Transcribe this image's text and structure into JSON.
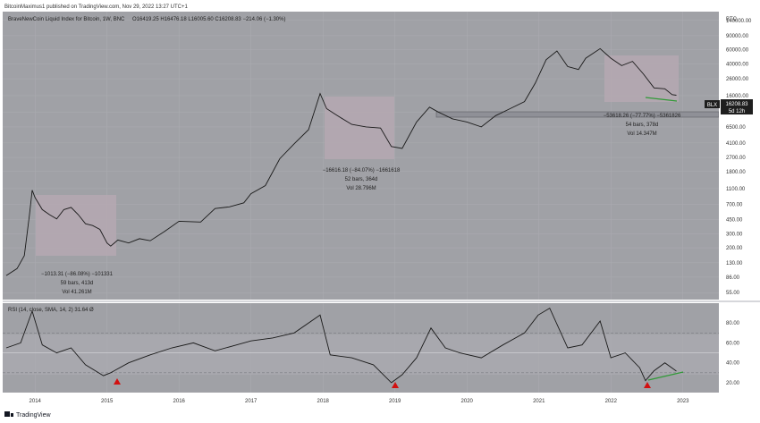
{
  "header": {
    "publisher": "BitcoinMaximus1 published on TradingView.com, Nov 29, 2022 13:27 UTC+1"
  },
  "legend": {
    "symbol": "BraveNewCoin Liquid Index for Bitcoin, 1W, BNC",
    "ohlc": "O16419.25  H16476.18  L16005.60  C16208.83  −214.06 (−1.30%)"
  },
  "price_axis": {
    "currency": "BTC",
    "labels": [
      "140000.00",
      "90000.00",
      "60000.00",
      "40000.00",
      "26000.00",
      "16000.00",
      "10000.00",
      "6500.00",
      "4100.00",
      "2700.00",
      "1800.00",
      "1100.00",
      "700.00",
      "450.00",
      "300.00",
      "200.00",
      "130.00",
      "86.00",
      "55.00"
    ],
    "last_label": "BLX",
    "last_price": "16208.83",
    "countdown": "5d 12h"
  },
  "rsi_panel": {
    "legend": "RSI (14, close, SMA, 14, 2)  31.64  Ø",
    "labels": [
      "80.00",
      "60.00",
      "40.00",
      "20.00"
    ]
  },
  "time_axis": {
    "labels": [
      "2014",
      "2015",
      "2016",
      "2017",
      "2018",
      "2019",
      "2020",
      "2021",
      "2022",
      "2023"
    ]
  },
  "annotations": [
    {
      "line1": "−1013.31 (−86.08%) −101331",
      "line2": "59 bars, 413d",
      "line3": "Vol 41.261M"
    },
    {
      "line1": "−16616.18 (−84.07%) −1661618",
      "line2": "52 bars, 364d",
      "line3": "Vol 28.796M"
    },
    {
      "line1": "−53618.26 (−77.77%) −5361826",
      "line2": "54 bars, 378d",
      "line3": "Vol 14.347M"
    }
  ],
  "footer": {
    "brand": "TradingView"
  },
  "colors": {
    "panel_bg": "#a0a1a6",
    "grid": "#aeafb4",
    "price_line": "#1a1a1a",
    "box_fill": "#b5a8b2",
    "support_fill": "#8f9097",
    "trend_green": "#2f9a36",
    "marker_red": "#d21010",
    "label_bg": "#1e1e1e"
  },
  "chart_data": [
    {
      "type": "line",
      "title": "BraveNewCoin Liquid Index for Bitcoin, 1W, BNC",
      "scale": "log",
      "ylabel": "BTC",
      "ylim": [
        45,
        180000
      ],
      "xlim": [
        2013.55,
        2023.5
      ],
      "x": [
        2013.6,
        2013.75,
        2013.85,
        2013.92,
        2013.96,
        2014.0,
        2014.1,
        2014.2,
        2014.3,
        2014.4,
        2014.5,
        2014.6,
        2014.7,
        2014.8,
        2014.9,
        2015.0,
        2015.05,
        2015.15,
        2015.3,
        2015.45,
        2015.6,
        2015.8,
        2016.0,
        2016.3,
        2016.5,
        2016.7,
        2016.9,
        2017.0,
        2017.2,
        2017.4,
        2017.6,
        2017.8,
        2017.96,
        2018.05,
        2018.2,
        2018.4,
        2018.6,
        2018.8,
        2018.95,
        2019.1,
        2019.3,
        2019.48,
        2019.6,
        2019.8,
        2020.0,
        2020.2,
        2020.4,
        2020.6,
        2020.8,
        2020.95,
        2021.1,
        2021.25,
        2021.4,
        2021.55,
        2021.65,
        2021.85,
        2022.0,
        2022.15,
        2022.3,
        2022.45,
        2022.6,
        2022.75,
        2022.85,
        2022.91
      ],
      "values": [
        90,
        110,
        160,
        500,
        1050,
        850,
        600,
        520,
        460,
        600,
        640,
        520,
        400,
        380,
        340,
        230,
        210,
        250,
        230,
        260,
        245,
        320,
        430,
        420,
        620,
        650,
        730,
        950,
        1200,
        2600,
        4000,
        6000,
        17000,
        11000,
        9000,
        7000,
        6500,
        6300,
        3700,
        3500,
        7500,
        11500,
        10000,
        8200,
        7500,
        6500,
        9000,
        11000,
        13500,
        23000,
        45000,
        58000,
        37000,
        34000,
        47000,
        62000,
        47000,
        38000,
        43000,
        30000,
        20000,
        19500,
        16500,
        16209
      ]
    },
    {
      "type": "line",
      "title": "RSI (14, close, SMA, 14, 2)",
      "ylim": [
        10,
        100
      ],
      "x": [
        2013.6,
        2013.8,
        2013.96,
        2014.1,
        2014.3,
        2014.5,
        2014.7,
        2014.95,
        2015.05,
        2015.3,
        2015.6,
        2015.9,
        2016.2,
        2016.5,
        2016.8,
        2017.0,
        2017.3,
        2017.6,
        2017.96,
        2018.1,
        2018.4,
        2018.7,
        2018.95,
        2019.1,
        2019.3,
        2019.5,
        2019.7,
        2019.9,
        2020.2,
        2020.5,
        2020.8,
        2020.99,
        2021.15,
        2021.4,
        2021.6,
        2021.85,
        2022.0,
        2022.2,
        2022.4,
        2022.48,
        2022.6,
        2022.75,
        2022.91
      ],
      "values": [
        55,
        60,
        92,
        58,
        50,
        55,
        38,
        27,
        30,
        40,
        48,
        55,
        60,
        52,
        58,
        62,
        65,
        70,
        88,
        48,
        45,
        38,
        20,
        28,
        45,
        75,
        55,
        50,
        45,
        58,
        70,
        88,
        95,
        55,
        58,
        82,
        45,
        50,
        35,
        22,
        32,
        40,
        31.64
      ],
      "reference_lines": [
        70,
        50,
        30
      ]
    }
  ]
}
